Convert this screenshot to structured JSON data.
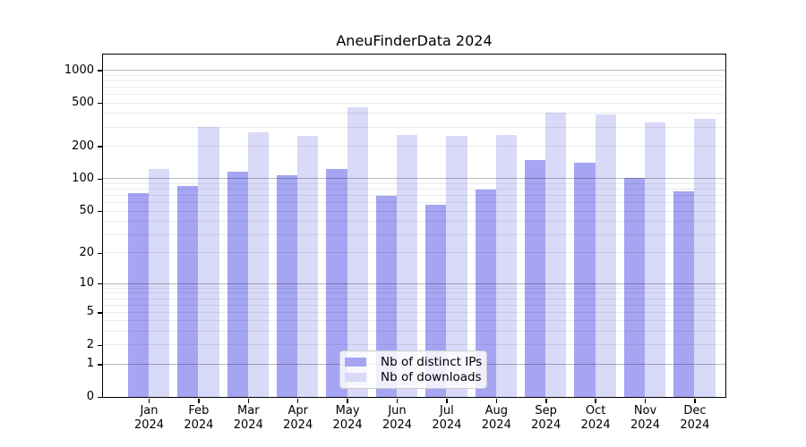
{
  "chart_data": {
    "type": "bar",
    "title": "AneuFinderData 2024",
    "categories": [
      "Jan",
      "Feb",
      "Mar",
      "Apr",
      "May",
      "Jun",
      "Jul",
      "Aug",
      "Sep",
      "Oct",
      "Nov",
      "Dec"
    ],
    "year_label": "2024",
    "series": [
      {
        "name": "Nb of distinct IPs",
        "color": "#a5a5f3",
        "values": [
          73,
          85,
          117,
          108,
          124,
          70,
          57,
          79,
          149,
          141,
          101,
          76
        ]
      },
      {
        "name": "Nb of downloads",
        "color": "#d9d9f8",
        "values": [
          123,
          300,
          270,
          248,
          458,
          256,
          250,
          253,
          408,
          390,
          329,
          359
        ]
      }
    ],
    "y_ticks": [
      0,
      1,
      2,
      5,
      10,
      20,
      50,
      100,
      200,
      500,
      1000
    ],
    "y_major_gridlines": [
      1,
      10,
      100,
      1000
    ],
    "scale": "log1p",
    "ylim": [
      0,
      1200
    ],
    "grid": "on",
    "legend_position": "lower center",
    "axis_color": "#000000",
    "background_color": "#ffffff"
  }
}
